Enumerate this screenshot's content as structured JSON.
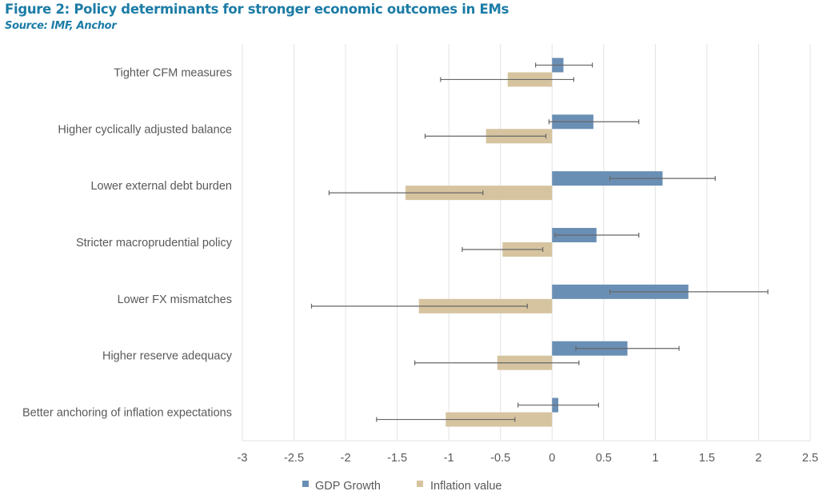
{
  "figure": {
    "title": "Figure 2: Policy determinants for stronger economic outcomes in EMs",
    "source": "Source: IMF, Anchor"
  },
  "colors": {
    "title": "#1c7ca6",
    "gdp": "#6a8fb5",
    "inflation": "#d6c4a0",
    "error_bar": "#666666",
    "grid": "#e3e3e3",
    "text": "#595959"
  },
  "chart_data": {
    "type": "bar",
    "orientation": "horizontal",
    "title": "Figure 2: Policy determinants for stronger economic outcomes in EMs",
    "subtitle": "Source: IMF, Anchor",
    "xlabel": "",
    "ylabel": "",
    "xlim": [
      -3,
      2.5
    ],
    "x_ticks": [
      -3,
      -2.5,
      -2,
      -1.5,
      -1,
      -0.5,
      0,
      0.5,
      1,
      1.5,
      2,
      2.5
    ],
    "x_tick_labels": [
      "-3",
      "-2.5",
      "-2",
      "-1.5",
      "-1",
      "-0.5",
      "0",
      "0.5",
      "1",
      "1.5",
      "2",
      "2.5"
    ],
    "grid": "vertical",
    "legend_position": "bottom-center",
    "categories": [
      "Tighter CFM measures",
      "Higher cyclically adjusted balance",
      "Lower external debt burden",
      "Stricter macroprudential policy",
      "Lower FX mismatches",
      "Higher reserve adequacy",
      "Better anchoring of inflation expectations"
    ],
    "series": [
      {
        "name": "GDP Growth",
        "color": "#6a8fb5",
        "values": [
          0.11,
          0.4,
          1.07,
          0.43,
          1.32,
          0.73,
          0.06
        ],
        "error_low": [
          -0.16,
          -0.03,
          0.56,
          0.03,
          0.56,
          0.23,
          -0.33
        ],
        "error_high": [
          0.39,
          0.84,
          1.58,
          0.84,
          2.09,
          1.23,
          0.45
        ]
      },
      {
        "name": "Inflation value",
        "color": "#d6c4a0",
        "values": [
          -0.43,
          -0.64,
          -1.42,
          -0.48,
          -1.29,
          -0.53,
          -1.03
        ],
        "error_low": [
          -1.08,
          -1.23,
          -2.16,
          -0.87,
          -2.33,
          -1.33,
          -1.7
        ],
        "error_high": [
          0.21,
          -0.06,
          -0.67,
          -0.09,
          -0.24,
          0.26,
          -0.36
        ]
      }
    ]
  }
}
